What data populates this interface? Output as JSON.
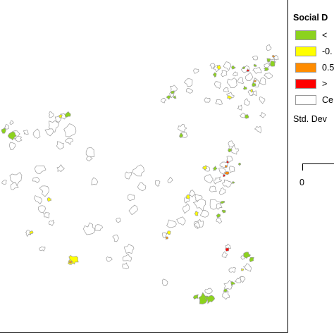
{
  "legend": {
    "title": "Social D",
    "rows": [
      {
        "label": "<",
        "color": "#8cd21e"
      },
      {
        "label": "-0.",
        "color": "#ffff00"
      },
      {
        "label": "0.5",
        "color": "#ff8c00"
      },
      {
        "label": ">",
        "color": "#ff0000"
      },
      {
        "label": "Ce",
        "color": "#ffffff"
      }
    ],
    "note": "Std. Dev"
  },
  "scale_bar": {
    "zero_label": "0"
  },
  "colors": {
    "outline": "#9a9a9a",
    "green": "#8cd21e",
    "yellow": "#ffff00",
    "orange": "#ff8c00",
    "red": "#ff0000"
  }
}
